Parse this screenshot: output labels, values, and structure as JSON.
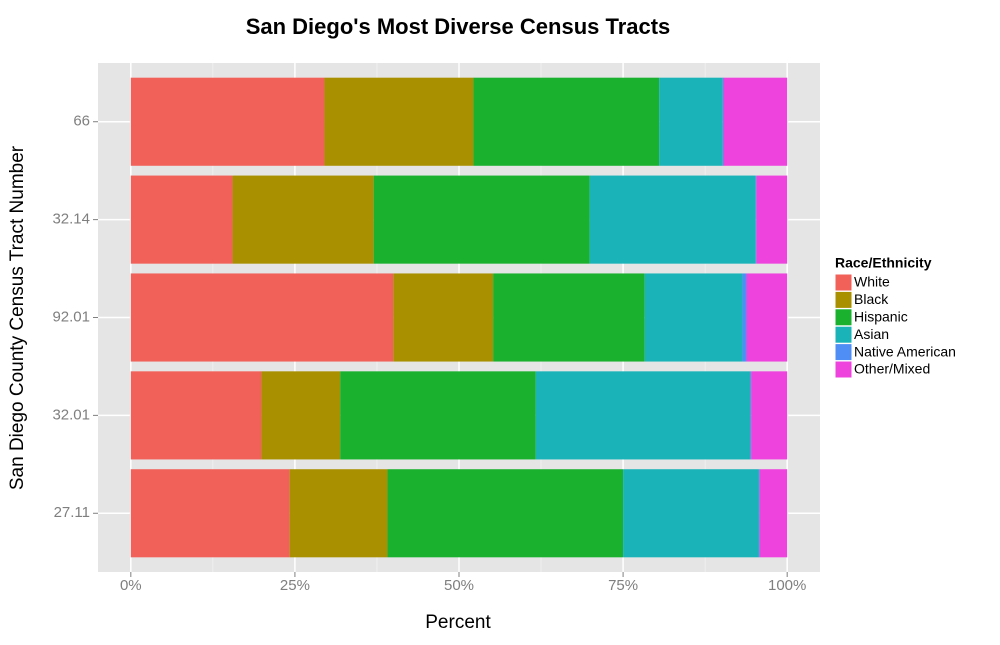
{
  "chart_data": {
    "type": "stacked_barh",
    "title": "San Diego's Most Diverse Census Tracts",
    "x_label": "Percent",
    "y_label": "San Diego County Census Tract Number",
    "legend_title": "Race/Ethnicity",
    "legend_position": "right",
    "categories": [
      "66",
      "32.14",
      "92.01",
      "32.01",
      "27.11"
    ],
    "series": [
      {
        "name": "White",
        "color": "#f2605a",
        "values": [
          29.5,
          15.5,
          40.0,
          19.9,
          24.2
        ]
      },
      {
        "name": "Black",
        "color": "#a89000",
        "values": [
          22.7,
          21.5,
          15.2,
          12.0,
          14.9
        ]
      },
      {
        "name": "Hispanic",
        "color": "#1ab12f",
        "values": [
          28.3,
          32.9,
          23.1,
          29.8,
          35.9
        ]
      },
      {
        "name": "Asian",
        "color": "#1ab3b8",
        "values": [
          9.7,
          25.3,
          14.9,
          32.7,
          20.7
        ]
      },
      {
        "name": "Native American",
        "color": "#4f8ef5",
        "values": [
          0.1,
          0.1,
          0.6,
          0.1,
          0.1
        ]
      },
      {
        "name": "Other/Mixed",
        "color": "#ee44dd",
        "values": [
          9.7,
          4.7,
          6.2,
          5.5,
          4.2
        ]
      }
    ],
    "xlim": [
      -5,
      105
    ],
    "xticks": [
      {
        "value": 0,
        "label": "0%"
      },
      {
        "value": 25,
        "label": "25%"
      },
      {
        "value": 50,
        "label": "50%"
      },
      {
        "value": 75,
        "label": "75%"
      },
      {
        "value": 100,
        "label": "100%"
      }
    ],
    "xminorticks": [
      12.5,
      37.5,
      62.5,
      87.5
    ],
    "grid": true
  }
}
